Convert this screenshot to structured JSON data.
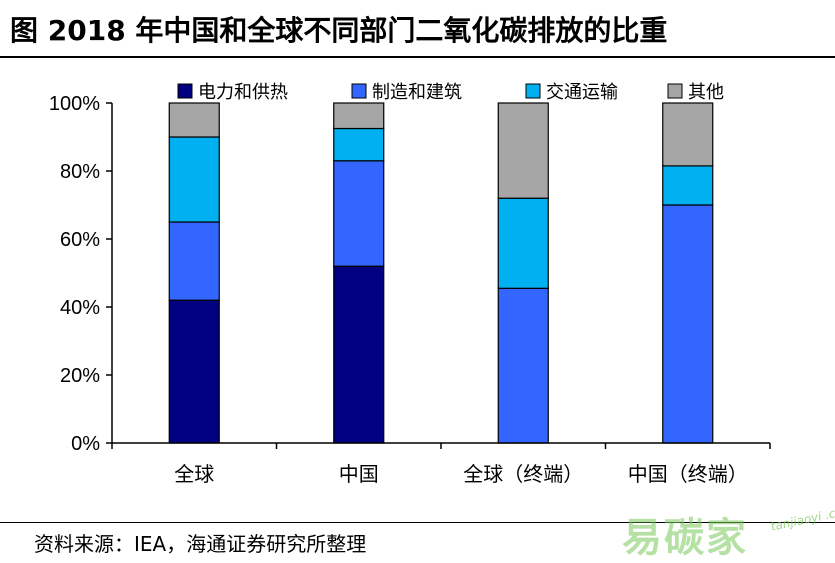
{
  "title": "图  2018 年中国和全球不同部门二氧化碳排放的比重",
  "source": "资料来源：IEA，海通证券研究所整理",
  "watermark": {
    "text": "易碳家",
    "domain": "tanjiaoyi .com"
  },
  "chart_data": {
    "type": "bar",
    "stacked": true,
    "categories": [
      "全球",
      "中国",
      "全球（终端）",
      "中国（终端）"
    ],
    "series": [
      {
        "name": "电力和供热",
        "color": "#000080",
        "values": [
          42,
          52,
          0,
          0
        ]
      },
      {
        "name": "制造和建筑",
        "color": "#3366FF",
        "values": [
          23,
          31,
          45.5,
          70
        ]
      },
      {
        "name": "交通运输",
        "color": "#00B0F0",
        "values": [
          25,
          9.5,
          26.5,
          11.5
        ]
      },
      {
        "name": "其他",
        "color": "#A6A6A6",
        "values": [
          10,
          7.5,
          28,
          18.5
        ]
      }
    ],
    "ylim": [
      0,
      100
    ],
    "yticks": [
      "0%",
      "20%",
      "40%",
      "60%",
      "80%",
      "100%"
    ],
    "grid": false,
    "legend_position": "top"
  }
}
